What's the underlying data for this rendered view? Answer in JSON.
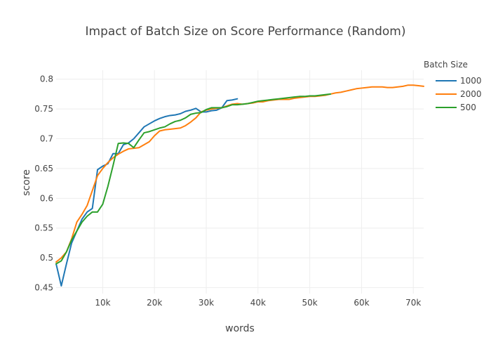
{
  "chart_data": {
    "type": "line",
    "title": "Impact of Batch Size on Score Performance (Random)",
    "xlabel": "words",
    "ylabel": "score",
    "xlim": [
      1000,
      72000
    ],
    "ylim": [
      0.44,
      0.815
    ],
    "x_ticks": [
      10000,
      20000,
      30000,
      40000,
      50000,
      60000,
      70000
    ],
    "x_tick_labels": [
      "10k",
      "20k",
      "30k",
      "40k",
      "50k",
      "60k",
      "70k"
    ],
    "y_ticks": [
      0.45,
      0.5,
      0.55,
      0.6,
      0.65,
      0.7,
      0.75,
      0.8
    ],
    "y_tick_labels": [
      "0.45",
      "0.5",
      "0.55",
      "0.6",
      "0.65",
      "0.7",
      "0.75",
      "0.8"
    ],
    "grid": true,
    "legend": {
      "title": "Batch Size",
      "position": "right"
    },
    "series": [
      {
        "name": "1000",
        "color": "#1f77b4",
        "points": [
          [
            1000,
            0.49
          ],
          [
            2000,
            0.453
          ],
          [
            3000,
            0.49
          ],
          [
            4000,
            0.525
          ],
          [
            5000,
            0.545
          ],
          [
            6000,
            0.565
          ],
          [
            7000,
            0.577
          ],
          [
            8000,
            0.583
          ],
          [
            9000,
            0.648
          ],
          [
            10000,
            0.654
          ],
          [
            11000,
            0.658
          ],
          [
            12000,
            0.675
          ],
          [
            13000,
            0.675
          ],
          [
            14000,
            0.69
          ],
          [
            15000,
            0.693
          ],
          [
            16000,
            0.7
          ],
          [
            17000,
            0.71
          ],
          [
            18000,
            0.72
          ],
          [
            19000,
            0.725
          ],
          [
            20000,
            0.73
          ],
          [
            21000,
            0.734
          ],
          [
            22000,
            0.737
          ],
          [
            23000,
            0.739
          ],
          [
            24000,
            0.74
          ],
          [
            25000,
            0.742
          ],
          [
            26000,
            0.746
          ],
          [
            27000,
            0.748
          ],
          [
            28000,
            0.751
          ],
          [
            29000,
            0.745
          ],
          [
            30000,
            0.745
          ],
          [
            31000,
            0.747
          ],
          [
            32000,
            0.748
          ],
          [
            33000,
            0.752
          ],
          [
            34000,
            0.764
          ],
          [
            35000,
            0.765
          ],
          [
            36000,
            0.767
          ]
        ]
      },
      {
        "name": "2000",
        "color": "#ff7f0e",
        "points": [
          [
            1000,
            0.493
          ],
          [
            2000,
            0.5
          ],
          [
            3000,
            0.51
          ],
          [
            4000,
            0.532
          ],
          [
            5000,
            0.56
          ],
          [
            6000,
            0.573
          ],
          [
            7000,
            0.588
          ],
          [
            8000,
            0.613
          ],
          [
            9000,
            0.638
          ],
          [
            10000,
            0.65
          ],
          [
            11000,
            0.66
          ],
          [
            12000,
            0.668
          ],
          [
            13000,
            0.674
          ],
          [
            14000,
            0.679
          ],
          [
            15000,
            0.683
          ],
          [
            16000,
            0.684
          ],
          [
            17000,
            0.685
          ],
          [
            18000,
            0.69
          ],
          [
            19000,
            0.695
          ],
          [
            20000,
            0.705
          ],
          [
            21000,
            0.713
          ],
          [
            22000,
            0.715
          ],
          [
            23000,
            0.716
          ],
          [
            24000,
            0.717
          ],
          [
            25000,
            0.718
          ],
          [
            26000,
            0.722
          ],
          [
            27000,
            0.728
          ],
          [
            28000,
            0.735
          ],
          [
            29000,
            0.745
          ],
          [
            30000,
            0.748
          ],
          [
            31000,
            0.75
          ],
          [
            32000,
            0.751
          ],
          [
            33000,
            0.752
          ],
          [
            34000,
            0.755
          ],
          [
            35000,
            0.758
          ],
          [
            36000,
            0.759
          ],
          [
            37000,
            0.758
          ],
          [
            38000,
            0.759
          ],
          [
            39000,
            0.76
          ],
          [
            40000,
            0.762
          ],
          [
            41000,
            0.762
          ],
          [
            42000,
            0.764
          ],
          [
            43000,
            0.765
          ],
          [
            44000,
            0.766
          ],
          [
            45000,
            0.766
          ],
          [
            46000,
            0.766
          ],
          [
            47000,
            0.768
          ],
          [
            48000,
            0.769
          ],
          [
            49000,
            0.77
          ],
          [
            50000,
            0.771
          ],
          [
            51000,
            0.771
          ],
          [
            52000,
            0.772
          ],
          [
            53000,
            0.773
          ],
          [
            54000,
            0.775
          ],
          [
            55000,
            0.777
          ],
          [
            56000,
            0.778
          ],
          [
            57000,
            0.78
          ],
          [
            58000,
            0.782
          ],
          [
            59000,
            0.784
          ],
          [
            60000,
            0.785
          ],
          [
            61000,
            0.786
          ],
          [
            62000,
            0.787
          ],
          [
            63000,
            0.787
          ],
          [
            64000,
            0.787
          ],
          [
            65000,
            0.786
          ],
          [
            66000,
            0.786
          ],
          [
            67000,
            0.787
          ],
          [
            68000,
            0.788
          ],
          [
            69000,
            0.79
          ],
          [
            70000,
            0.79
          ],
          [
            71000,
            0.789
          ],
          [
            72000,
            0.788
          ]
        ]
      },
      {
        "name": "500",
        "color": "#2ca02c",
        "points": [
          [
            1000,
            0.49
          ],
          [
            2000,
            0.495
          ],
          [
            3000,
            0.51
          ],
          [
            4000,
            0.53
          ],
          [
            5000,
            0.545
          ],
          [
            6000,
            0.56
          ],
          [
            7000,
            0.57
          ],
          [
            8000,
            0.577
          ],
          [
            9000,
            0.577
          ],
          [
            10000,
            0.59
          ],
          [
            11000,
            0.62
          ],
          [
            12000,
            0.655
          ],
          [
            13000,
            0.692
          ],
          [
            14000,
            0.693
          ],
          [
            15000,
            0.692
          ],
          [
            16000,
            0.685
          ],
          [
            17000,
            0.698
          ],
          [
            18000,
            0.71
          ],
          [
            19000,
            0.712
          ],
          [
            20000,
            0.715
          ],
          [
            21000,
            0.718
          ],
          [
            22000,
            0.72
          ],
          [
            23000,
            0.725
          ],
          [
            24000,
            0.729
          ],
          [
            25000,
            0.731
          ],
          [
            26000,
            0.735
          ],
          [
            27000,
            0.741
          ],
          [
            28000,
            0.743
          ],
          [
            29000,
            0.744
          ],
          [
            30000,
            0.749
          ],
          [
            31000,
            0.752
          ],
          [
            32000,
            0.752
          ],
          [
            33000,
            0.752
          ],
          [
            34000,
            0.754
          ],
          [
            35000,
            0.757
          ],
          [
            36000,
            0.757
          ],
          [
            37000,
            0.758
          ],
          [
            38000,
            0.759
          ],
          [
            39000,
            0.761
          ],
          [
            40000,
            0.763
          ],
          [
            41000,
            0.764
          ],
          [
            42000,
            0.765
          ],
          [
            43000,
            0.766
          ],
          [
            44000,
            0.767
          ],
          [
            45000,
            0.768
          ],
          [
            46000,
            0.769
          ],
          [
            47000,
            0.77
          ],
          [
            48000,
            0.771
          ],
          [
            49000,
            0.771
          ],
          [
            50000,
            0.772
          ],
          [
            51000,
            0.772
          ],
          [
            52000,
            0.773
          ],
          [
            53000,
            0.774
          ],
          [
            54000,
            0.775
          ]
        ]
      }
    ]
  }
}
